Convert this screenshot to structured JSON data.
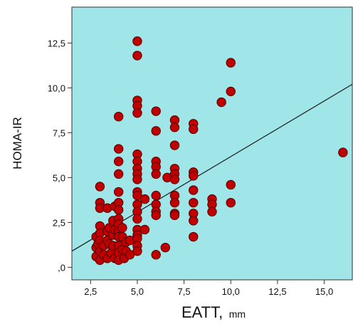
{
  "chart_data": {
    "type": "scatter",
    "title": "",
    "xlabel": "EATT,",
    "xlabel_unit": "mm",
    "ylabel": "HOMA-IR",
    "xlim": [
      1.5,
      16.5
    ],
    "ylim": [
      -0.7,
      14.5
    ],
    "x_ticks": [
      2.5,
      5.0,
      7.5,
      10.0,
      12.5,
      15.0
    ],
    "x_tick_labels": [
      "2,5",
      "5,0",
      "7,5",
      "10,0",
      "12,5",
      "15,0"
    ],
    "y_ticks": [
      0,
      2.5,
      5.0,
      7.5,
      10.0,
      12.5
    ],
    "y_tick_labels": [
      ",0",
      "2,5",
      "5,0",
      "7,5",
      "10,0",
      "12,5"
    ],
    "grid": false,
    "legend": "none",
    "colors": {
      "plot_background": "#a0e6e8",
      "marker_fill": "#c00000",
      "marker_edge": "#500000",
      "fit_line": "#1a1a1a"
    },
    "fit_line": {
      "x": [
        1.5,
        16.5
      ],
      "y": [
        0.9,
        10.2
      ]
    },
    "points": [
      {
        "x": 2.8,
        "y": 1.7
      },
      {
        "x": 2.8,
        "y": 1.1
      },
      {
        "x": 2.8,
        "y": 0.6
      },
      {
        "x": 2.9,
        "y": 1.3
      },
      {
        "x": 3.0,
        "y": 4.5
      },
      {
        "x": 3.0,
        "y": 3.6
      },
      {
        "x": 3.0,
        "y": 3.3
      },
      {
        "x": 3.0,
        "y": 2.3
      },
      {
        "x": 3.0,
        "y": 1.9
      },
      {
        "x": 3.0,
        "y": 1.5
      },
      {
        "x": 3.0,
        "y": 0.9
      },
      {
        "x": 3.0,
        "y": 0.4
      },
      {
        "x": 3.2,
        "y": 1.2
      },
      {
        "x": 3.2,
        "y": 0.7
      },
      {
        "x": 3.4,
        "y": 3.3
      },
      {
        "x": 3.4,
        "y": 2.0
      },
      {
        "x": 3.4,
        "y": 1.5
      },
      {
        "x": 3.4,
        "y": 0.5
      },
      {
        "x": 3.5,
        "y": 2.2
      },
      {
        "x": 3.5,
        "y": 1.3
      },
      {
        "x": 3.6,
        "y": 0.8
      },
      {
        "x": 3.7,
        "y": 1.8
      },
      {
        "x": 3.7,
        "y": 1.2
      },
      {
        "x": 3.7,
        "y": 2.6
      },
      {
        "x": 3.8,
        "y": 3.4
      },
      {
        "x": 3.8,
        "y": 2.1
      },
      {
        "x": 3.8,
        "y": 0.5
      },
      {
        "x": 4.0,
        "y": 8.4
      },
      {
        "x": 4.0,
        "y": 6.6
      },
      {
        "x": 4.0,
        "y": 5.9
      },
      {
        "x": 4.0,
        "y": 5.2
      },
      {
        "x": 4.0,
        "y": 4.2
      },
      {
        "x": 4.0,
        "y": 3.6
      },
      {
        "x": 4.0,
        "y": 3.2
      },
      {
        "x": 4.0,
        "y": 2.7
      },
      {
        "x": 4.0,
        "y": 2.4
      },
      {
        "x": 4.0,
        "y": 2.0
      },
      {
        "x": 4.0,
        "y": 1.7
      },
      {
        "x": 4.0,
        "y": 1.2
      },
      {
        "x": 4.0,
        "y": 0.8
      },
      {
        "x": 4.0,
        "y": 0.4
      },
      {
        "x": 4.2,
        "y": 2.2
      },
      {
        "x": 4.2,
        "y": 1.7
      },
      {
        "x": 4.2,
        "y": 1.0
      },
      {
        "x": 4.3,
        "y": 0.5
      },
      {
        "x": 4.4,
        "y": 1.4
      },
      {
        "x": 4.4,
        "y": 0.9
      },
      {
        "x": 4.6,
        "y": 1.5
      },
      {
        "x": 4.6,
        "y": 0.7
      },
      {
        "x": 5.0,
        "y": 12.6
      },
      {
        "x": 5.0,
        "y": 11.8
      },
      {
        "x": 5.0,
        "y": 9.3
      },
      {
        "x": 5.0,
        "y": 9.0
      },
      {
        "x": 5.0,
        "y": 8.6
      },
      {
        "x": 5.0,
        "y": 6.3
      },
      {
        "x": 5.0,
        "y": 5.9
      },
      {
        "x": 5.0,
        "y": 5.5
      },
      {
        "x": 5.0,
        "y": 5.2
      },
      {
        "x": 5.0,
        "y": 4.9
      },
      {
        "x": 5.0,
        "y": 4.2
      },
      {
        "x": 5.0,
        "y": 4.0
      },
      {
        "x": 5.0,
        "y": 3.5
      },
      {
        "x": 5.0,
        "y": 3.1
      },
      {
        "x": 5.0,
        "y": 2.7
      },
      {
        "x": 5.0,
        "y": 2.1
      },
      {
        "x": 5.0,
        "y": 1.8
      },
      {
        "x": 5.0,
        "y": 1.6
      },
      {
        "x": 5.0,
        "y": 1.2
      },
      {
        "x": 5.0,
        "y": 0.9
      },
      {
        "x": 5.4,
        "y": 3.8
      },
      {
        "x": 5.4,
        "y": 2.1
      },
      {
        "x": 6.0,
        "y": 8.7
      },
      {
        "x": 6.0,
        "y": 7.6
      },
      {
        "x": 6.0,
        "y": 5.9
      },
      {
        "x": 6.0,
        "y": 5.6
      },
      {
        "x": 6.0,
        "y": 5.2
      },
      {
        "x": 6.0,
        "y": 4.0
      },
      {
        "x": 6.0,
        "y": 3.5
      },
      {
        "x": 6.0,
        "y": 3.1
      },
      {
        "x": 6.0,
        "y": 2.9
      },
      {
        "x": 6.0,
        "y": 0.7
      },
      {
        "x": 6.5,
        "y": 1.1
      },
      {
        "x": 6.6,
        "y": 5.0
      },
      {
        "x": 7.0,
        "y": 8.2
      },
      {
        "x": 7.0,
        "y": 7.8
      },
      {
        "x": 7.0,
        "y": 6.8
      },
      {
        "x": 7.0,
        "y": 5.5
      },
      {
        "x": 7.0,
        "y": 5.2
      },
      {
        "x": 7.0,
        "y": 4.9
      },
      {
        "x": 7.0,
        "y": 4.0
      },
      {
        "x": 7.0,
        "y": 3.6
      },
      {
        "x": 7.0,
        "y": 3.0
      },
      {
        "x": 7.0,
        "y": 2.9
      },
      {
        "x": 8.0,
        "y": 8.0
      },
      {
        "x": 8.0,
        "y": 7.7
      },
      {
        "x": 8.0,
        "y": 5.3
      },
      {
        "x": 8.0,
        "y": 5.1
      },
      {
        "x": 8.0,
        "y": 4.3
      },
      {
        "x": 8.0,
        "y": 3.6
      },
      {
        "x": 8.0,
        "y": 3.0
      },
      {
        "x": 8.0,
        "y": 2.6
      },
      {
        "x": 8.0,
        "y": 1.7
      },
      {
        "x": 9.0,
        "y": 3.8
      },
      {
        "x": 9.0,
        "y": 3.5
      },
      {
        "x": 9.0,
        "y": 3.1
      },
      {
        "x": 9.5,
        "y": 9.2
      },
      {
        "x": 10.0,
        "y": 11.4
      },
      {
        "x": 10.0,
        "y": 9.8
      },
      {
        "x": 10.0,
        "y": 4.6
      },
      {
        "x": 10.0,
        "y": 3.6
      },
      {
        "x": 16.0,
        "y": 6.4
      }
    ]
  }
}
